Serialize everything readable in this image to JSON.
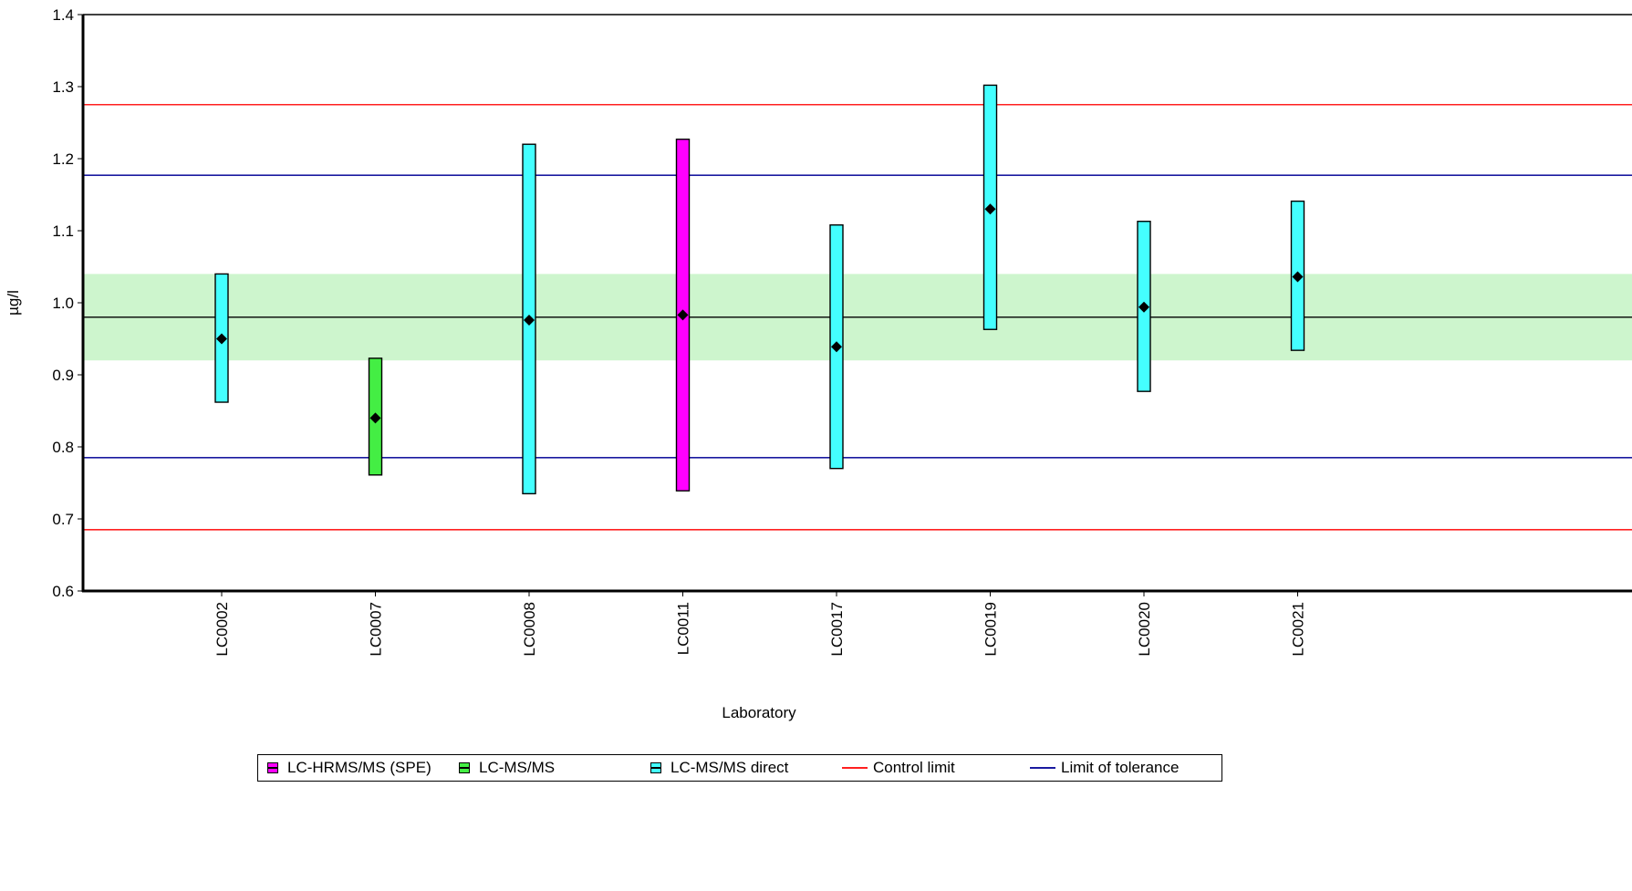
{
  "chart_data": {
    "type": "error-bar",
    "xlabel": "Laboratory",
    "ylabel": "µg/l",
    "ylim": [
      0.6,
      1.4
    ],
    "yticks": [
      "0.6",
      "0.7",
      "0.8",
      "0.9",
      "1.0",
      "1.1",
      "1.2",
      "1.3",
      "1.4"
    ],
    "assigned_value": 0.98,
    "tolerance_band": [
      0.92,
      1.04
    ],
    "control_limits": [
      0.685,
      1.275
    ],
    "tolerance_limits": [
      0.785,
      1.177
    ],
    "labs": [
      {
        "lab": "LC0002",
        "method": "LC-MS/MS direct",
        "value": 0.95,
        "low": 0.862,
        "high": 1.04
      },
      {
        "lab": "LC0007",
        "method": "LC-MS/MS",
        "value": 0.84,
        "low": 0.761,
        "high": 0.923
      },
      {
        "lab": "LC0008",
        "method": "LC-MS/MS direct",
        "value": 0.976,
        "low": 0.735,
        "high": 1.22
      },
      {
        "lab": "LC0011",
        "method": "LC-HRMS/MS (SPE)",
        "value": 0.983,
        "low": 0.739,
        "high": 1.227
      },
      {
        "lab": "LC0017",
        "method": "LC-MS/MS direct",
        "value": 0.939,
        "low": 0.77,
        "high": 1.108
      },
      {
        "lab": "LC0019",
        "method": "LC-MS/MS direct",
        "value": 1.13,
        "low": 0.963,
        "high": 1.302
      },
      {
        "lab": "LC0020",
        "method": "LC-MS/MS direct",
        "value": 0.994,
        "low": 0.877,
        "high": 1.113
      },
      {
        "lab": "LC0021",
        "method": "LC-MS/MS direct",
        "value": 1.036,
        "low": 0.934,
        "high": 1.141
      }
    ],
    "legend": [
      {
        "label": "LC-HRMS/MS (SPE)",
        "kind": "box",
        "color": "#ff00ff"
      },
      {
        "label": "LC-MS/MS",
        "kind": "box",
        "color": "#44ee44"
      },
      {
        "label": "LC-MS/MS direct",
        "kind": "box",
        "color": "#44ffff"
      },
      {
        "label": "Control limit",
        "kind": "line",
        "color": "#ff2020"
      },
      {
        "label": "Limit of tolerance",
        "kind": "line",
        "color": "#1a1aa0"
      }
    ],
    "colors": {
      "LC-HRMS/MS (SPE)": "#ff00ff",
      "LC-MS/MS": "#44ee44",
      "LC-MS/MS direct": "#44ffff",
      "control_limit": "#ff2020",
      "tolerance_limit": "#1a1aa0",
      "tolerance_band": "#cdf5cd",
      "assigned_line": "#000000"
    }
  }
}
